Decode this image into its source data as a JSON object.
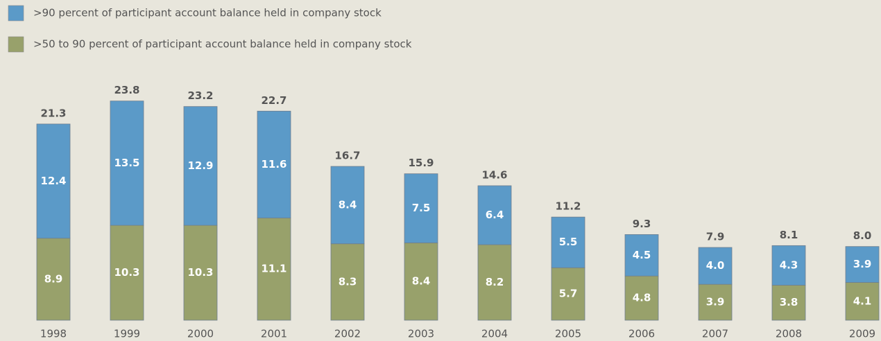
{
  "chart_data": {
    "type": "stacked_bar",
    "categories": [
      "1998",
      "1999",
      "2000",
      "2001",
      "2002",
      "2003",
      "2004",
      "2005",
      "2006",
      "2007",
      "2008",
      "2009"
    ],
    "series": [
      {
        "name": ">50 to 90 percent of participant account balance held in company stock",
        "color": "#98a16b",
        "values": [
          8.9,
          10.3,
          10.3,
          11.1,
          8.3,
          8.4,
          8.2,
          5.7,
          4.8,
          3.9,
          3.8,
          4.1
        ],
        "value_labels": [
          "8.9",
          "10.3",
          "10.3",
          "11.1",
          "8.3",
          "8.4",
          "8.2",
          "5.7",
          "4.8",
          "3.9",
          "3.8",
          "4.1"
        ]
      },
      {
        "name": ">90 percent of participant account balance held in company stock",
        "color": "#5b9ac8",
        "values": [
          12.4,
          13.5,
          12.9,
          11.6,
          8.4,
          7.5,
          6.4,
          5.5,
          4.5,
          4.0,
          4.3,
          3.9
        ],
        "value_labels": [
          "12.4",
          "13.5",
          "12.9",
          "11.6",
          "8.4",
          "7.5",
          "6.4",
          "5.5",
          "4.5",
          "4.0",
          "4.3",
          "3.9"
        ]
      }
    ],
    "totals": [
      21.3,
      23.8,
      23.2,
      22.7,
      16.7,
      15.9,
      14.6,
      11.2,
      9.3,
      7.9,
      8.1,
      8.0
    ],
    "total_labels": [
      "21.3",
      "23.8",
      "23.2",
      "22.7",
      "16.7",
      "15.9",
      "14.6",
      "11.2",
      "9.3",
      "7.9",
      "8.1",
      "8.0"
    ]
  }
}
